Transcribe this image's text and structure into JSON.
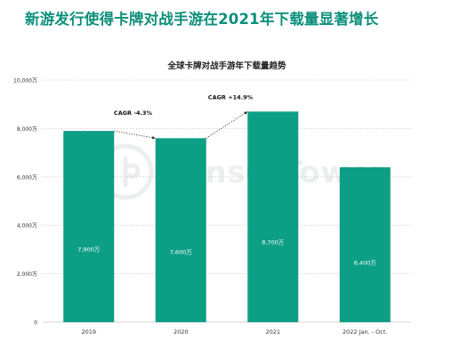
{
  "headline": "新游发行使得卡牌对战手游在2021年下载量显著增长",
  "watermark": "SensorTower",
  "colors": {
    "headline": "#0d8f7b",
    "bar": "#0d9e86",
    "bar_label": "#ffffff",
    "grid": "#c9c9c9",
    "text": "#333333"
  },
  "chart_data": {
    "type": "bar",
    "title": "全球卡牌对战手游年下载量趋势",
    "categories": [
      "2019",
      "2020",
      "2021",
      "2022 Jan. - Oct."
    ],
    "values": [
      7900,
      7600,
      8700,
      6400
    ],
    "value_labels": [
      "7,900万",
      "7,600万",
      "8,700万",
      "6,400万"
    ],
    "ylim": [
      0,
      10000
    ],
    "yticks": [
      0,
      2000,
      4000,
      6000,
      8000,
      10000
    ],
    "ytick_labels": [
      "0",
      "2,000万",
      "4,000万",
      "6,000万",
      "8,000万",
      "10,000万"
    ],
    "grid": true,
    "xlabel": "",
    "ylabel": "",
    "annotations": [
      {
        "text": "CAGR -4.3%",
        "from": 0,
        "to": 1
      },
      {
        "text": "CAGR +14.9%",
        "from": 1,
        "to": 2
      }
    ]
  }
}
